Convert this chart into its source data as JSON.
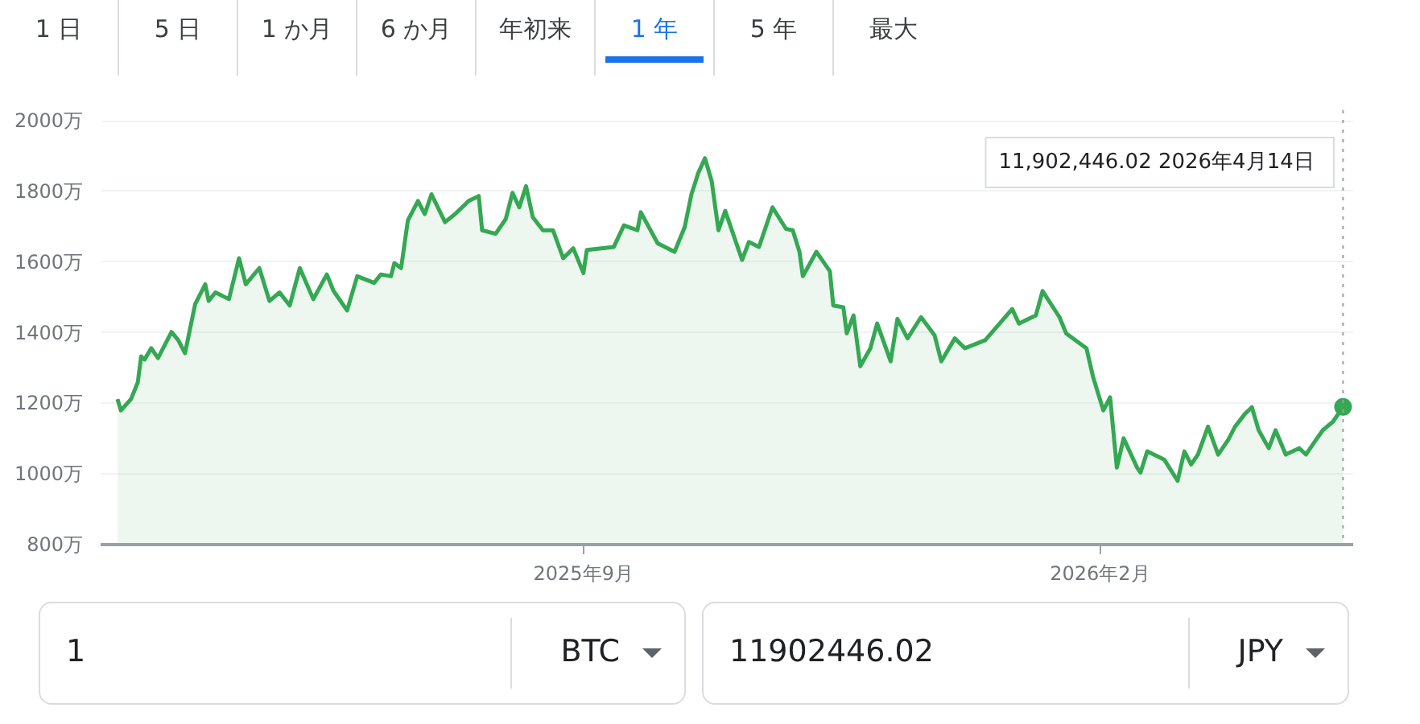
{
  "chart_data": {
    "type": "area",
    "x": [
      "2025-04-16",
      "2025-04-17",
      "2025-04-20",
      "2025-04-22",
      "2025-04-23",
      "2025-04-24",
      "2025-04-26",
      "2025-04-28",
      "2025-05-02",
      "2025-05-04",
      "2025-05-06",
      "2025-05-09",
      "2025-05-12",
      "2025-05-13",
      "2025-05-15",
      "2025-05-19",
      "2025-05-22",
      "2025-05-24",
      "2025-05-28",
      "2025-05-31",
      "2025-06-03",
      "2025-06-06",
      "2025-06-09",
      "2025-06-13",
      "2025-06-17",
      "2025-06-19",
      "2025-06-23",
      "2025-06-26",
      "2025-07-01",
      "2025-07-03",
      "2025-07-06",
      "2025-07-07",
      "2025-07-09",
      "2025-07-11",
      "2025-07-14",
      "2025-07-16",
      "2025-07-18",
      "2025-07-22",
      "2025-07-25",
      "2025-07-29",
      "2025-08-01",
      "2025-08-02",
      "2025-08-06",
      "2025-08-09",
      "2025-08-11",
      "2025-08-13",
      "2025-08-15",
      "2025-08-17",
      "2025-08-20",
      "2025-08-23",
      "2025-08-26",
      "2025-08-29",
      "2025-09-01",
      "2025-09-02",
      "2025-09-10",
      "2025-09-13",
      "2025-09-17",
      "2025-09-18",
      "2025-09-23",
      "2025-09-28",
      "2025-10-01",
      "2025-10-03",
      "2025-10-05",
      "2025-10-07",
      "2025-10-09",
      "2025-10-11",
      "2025-10-13",
      "2025-10-18",
      "2025-10-20",
      "2025-10-23",
      "2025-10-27",
      "2025-10-31",
      "2025-11-02",
      "2025-11-04",
      "2025-11-05",
      "2025-11-09",
      "2025-11-13",
      "2025-11-14",
      "2025-11-17",
      "2025-11-18",
      "2025-11-20",
      "2025-11-22",
      "2025-11-25",
      "2025-11-27",
      "2025-12-01",
      "2025-12-03",
      "2025-12-06",
      "2025-12-10",
      "2025-12-14",
      "2025-12-16",
      "2025-12-20",
      "2025-12-23",
      "2025-12-29",
      "2026-01-06",
      "2026-01-08",
      "2026-01-13",
      "2026-01-15",
      "2026-01-20",
      "2026-01-22",
      "2026-01-28",
      "2026-01-30",
      "2026-02-02",
      "2026-02-04",
      "2026-02-06",
      "2026-02-08",
      "2026-02-12",
      "2026-02-13",
      "2026-02-15",
      "2026-02-20",
      "2026-02-24",
      "2026-02-26",
      "2026-02-28",
      "2026-03-02",
      "2026-03-05",
      "2026-03-08",
      "2026-03-11",
      "2026-03-13",
      "2026-03-16",
      "2026-03-18",
      "2026-03-20",
      "2026-03-23",
      "2026-03-25",
      "2026-03-28",
      "2026-04-01",
      "2026-04-03",
      "2026-04-06",
      "2026-04-08",
      "2026-04-11",
      "2026-04-14"
    ],
    "series": [
      {
        "color": "#34a853",
        "values": [
          1212,
          1180,
          1212,
          1259,
          1333,
          1324,
          1356,
          1328,
          1402,
          1379,
          1342,
          1481,
          1537,
          1490,
          1514,
          1495,
          1611,
          1537,
          1583,
          1490,
          1514,
          1477,
          1583,
          1495,
          1565,
          1518,
          1463,
          1560,
          1541,
          1565,
          1560,
          1597,
          1583,
          1718,
          1773,
          1736,
          1792,
          1713,
          1736,
          1773,
          1787,
          1690,
          1680,
          1722,
          1796,
          1755,
          1815,
          1727,
          1690,
          1690,
          1611,
          1639,
          1569,
          1634,
          1643,
          1704,
          1690,
          1741,
          1653,
          1629,
          1699,
          1792,
          1852,
          1894,
          1829,
          1690,
          1745,
          1606,
          1657,
          1643,
          1755,
          1694,
          1690,
          1629,
          1560,
          1629,
          1574,
          1477,
          1472,
          1398,
          1449,
          1305,
          1356,
          1426,
          1319,
          1439,
          1384,
          1444,
          1393,
          1319,
          1384,
          1356,
          1379,
          1467,
          1426,
          1449,
          1518,
          1444,
          1398,
          1356,
          1273,
          1180,
          1217,
          1018,
          1101,
          1018,
          1004,
          1064,
          1041,
          981,
          1064,
          1027,
          1055,
          1134,
          1055,
          1097,
          1134,
          1171,
          1189,
          1124,
          1073,
          1124,
          1055,
          1073,
          1055,
          1097,
          1124,
          1148,
          1190
        ]
      }
    ],
    "xlim": [
      "2025-04-11",
      "2026-04-17"
    ],
    "xticks": [
      {
        "value": "2025-09-01",
        "label": "2025年9月"
      },
      {
        "value": "2026-02-01",
        "label": "2026年2月"
      }
    ],
    "ylim": [
      800,
      2030
    ],
    "yticks": [
      {
        "value": 800,
        "label": "800万"
      },
      {
        "value": 1000,
        "label": "1000万"
      },
      {
        "value": 1200,
        "label": "1200万"
      },
      {
        "value": 1400,
        "label": "1400万"
      },
      {
        "value": 1600,
        "label": "1600万"
      },
      {
        "value": 1800,
        "label": "1800万"
      },
      {
        "value": 2000,
        "label": "2000万"
      }
    ],
    "grid": "y",
    "ref_lines": [
      {
        "axis": "x",
        "value": "2026-04-14",
        "color": "#9aa0a6",
        "line_style": "dotted"
      }
    ],
    "annotations": [
      "1 日",
      "5 日",
      "1 か月",
      "6 か月",
      "年初来",
      "1 年",
      "5 年",
      "最大",
      "11,902,446.02  2026年4月14日",
      "1",
      "BTC",
      "11902446.02",
      "JPY"
    ]
  }
}
